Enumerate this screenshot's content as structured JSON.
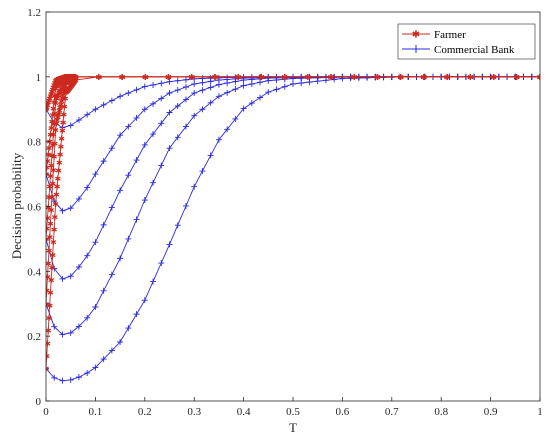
{
  "chart_data": {
    "type": "line",
    "xlabel": "T",
    "ylabel": "Decision probability",
    "xlim": [
      0,
      1
    ],
    "ylim": [
      0,
      1.2
    ],
    "x_ticks": [
      "0",
      "0.1",
      "0.2",
      "0.3",
      "0.4",
      "0.5",
      "0.6",
      "0.7",
      "0.8",
      "0.9",
      "1"
    ],
    "y_ticks": [
      "0",
      "0.2",
      "0.4",
      "0.6",
      "0.8",
      "1",
      "1.2"
    ],
    "grid": false,
    "legend_position": "top-right",
    "legend": [
      {
        "name": "Farmer",
        "color": "#cc2a1f",
        "marker": "asterisk"
      },
      {
        "name": "Commercial Bank",
        "color": "#2a2ae0",
        "marker": "plus"
      }
    ],
    "x_samples": [
      0,
      0.02,
      0.04,
      0.06,
      0.08,
      0.1,
      0.15,
      0.2,
      0.25,
      0.3,
      0.35,
      0.4,
      0.45,
      0.5,
      0.6,
      0.7,
      0.8,
      0.9,
      1.0
    ],
    "series": [
      {
        "name": "Farmer",
        "initial_value": 0.1,
        "values": [
          0.1,
          0.62,
          0.95,
          0.99,
          1,
          1,
          1,
          1,
          1,
          1,
          1,
          1,
          1,
          1,
          1,
          1,
          1,
          1,
          1
        ]
      },
      {
        "name": "Farmer",
        "initial_value": 0.3,
        "values": [
          0.3,
          0.85,
          0.98,
          1,
          1,
          1,
          1,
          1,
          1,
          1,
          1,
          1,
          1,
          1,
          1,
          1,
          1,
          1,
          1
        ]
      },
      {
        "name": "Farmer",
        "initial_value": 0.5,
        "values": [
          0.5,
          0.93,
          0.99,
          1,
          1,
          1,
          1,
          1,
          1,
          1,
          1,
          1,
          1,
          1,
          1,
          1,
          1,
          1,
          1
        ]
      },
      {
        "name": "Farmer",
        "initial_value": 0.7,
        "values": [
          0.7,
          0.97,
          1,
          1,
          1,
          1,
          1,
          1,
          1,
          1,
          1,
          1,
          1,
          1,
          1,
          1,
          1,
          1,
          1
        ]
      },
      {
        "name": "Farmer",
        "initial_value": 0.9,
        "values": [
          0.9,
          0.99,
          1,
          1,
          1,
          1,
          1,
          1,
          1,
          1,
          1,
          1,
          1,
          1,
          1,
          1,
          1,
          1,
          1
        ]
      },
      {
        "name": "Commercial Bank",
        "initial_value": 0.1,
        "values": [
          0.1,
          0.066,
          0.061,
          0.069,
          0.083,
          0.103,
          0.182,
          0.311,
          0.483,
          0.661,
          0.806,
          0.902,
          0.953,
          0.978,
          0.995,
          0.999,
          1,
          1,
          1
        ]
      },
      {
        "name": "Commercial Bank",
        "initial_value": 0.3,
        "values": [
          0.3,
          0.215,
          0.2,
          0.22,
          0.25,
          0.29,
          0.44,
          0.62,
          0.78,
          0.88,
          0.94,
          0.973,
          0.988,
          0.995,
          0.999,
          1,
          1,
          1,
          1
        ]
      },
      {
        "name": "Commercial Bank",
        "initial_value": 0.5,
        "values": [
          0.5,
          0.39,
          0.37,
          0.4,
          0.44,
          0.49,
          0.65,
          0.79,
          0.89,
          0.95,
          0.976,
          0.99,
          0.996,
          0.998,
          1,
          1,
          1,
          1,
          1
        ]
      },
      {
        "name": "Commercial Bank",
        "initial_value": 0.7,
        "values": [
          0.7,
          0.6,
          0.58,
          0.61,
          0.65,
          0.7,
          0.82,
          0.9,
          0.95,
          0.978,
          0.99,
          0.996,
          0.998,
          1,
          1,
          1,
          1,
          1,
          1
        ]
      },
      {
        "name": "Commercial Bank",
        "initial_value": 0.9,
        "values": [
          0.9,
          0.85,
          0.84,
          0.86,
          0.88,
          0.9,
          0.94,
          0.97,
          0.985,
          0.994,
          0.997,
          0.999,
          1,
          1,
          1,
          1,
          1,
          1,
          1
        ]
      }
    ]
  }
}
